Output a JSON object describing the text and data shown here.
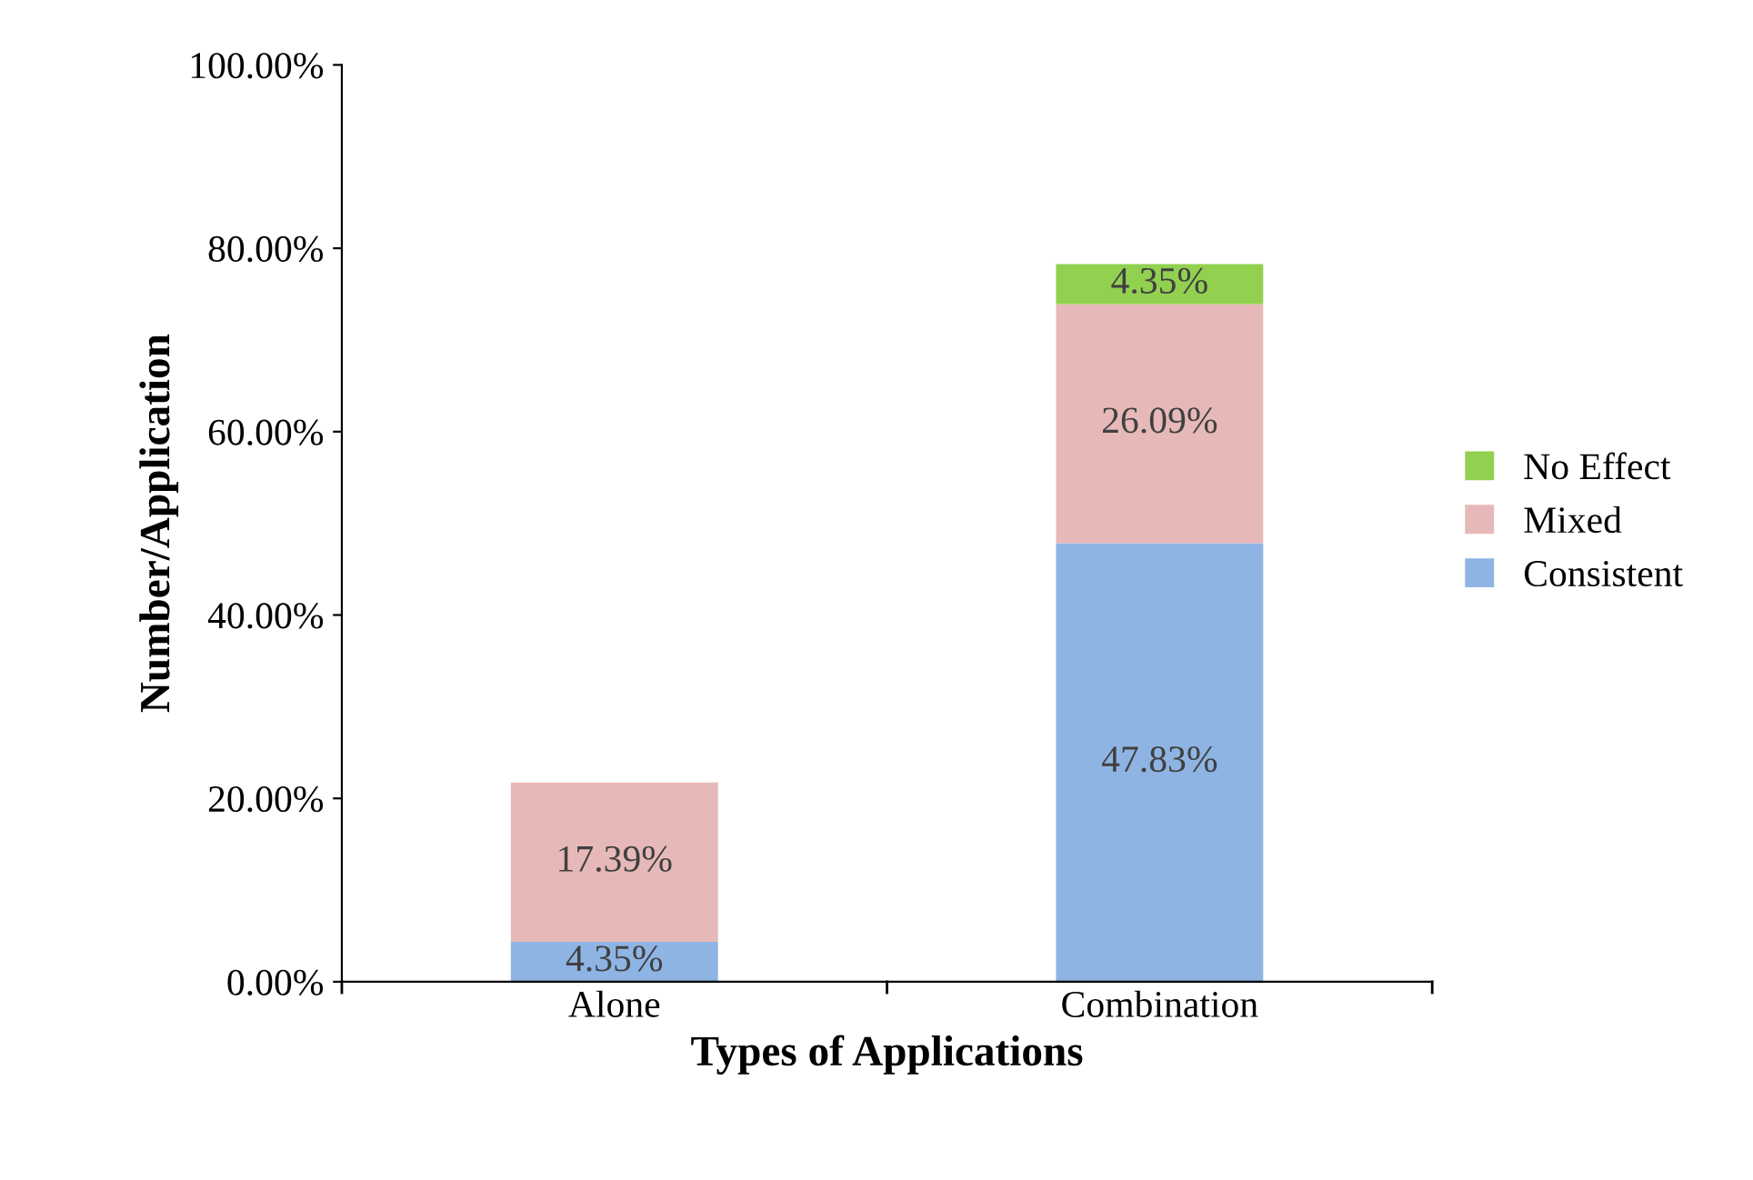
{
  "chart_data": {
    "type": "bar",
    "stacked": true,
    "xlabel": "Types of Applications",
    "ylabel": "Number/Application",
    "categories": [
      "Alone",
      "Combination"
    ],
    "series": [
      {
        "name": "Consistent",
        "color": "#8eb4e3",
        "values": [
          4.35,
          47.83
        ],
        "value_labels": [
          "4.35%",
          "47.83%"
        ]
      },
      {
        "name": "Mixed",
        "color": "#e6b9b8",
        "values": [
          17.39,
          26.09
        ],
        "value_labels": [
          "17.39%",
          "26.09%"
        ]
      },
      {
        "name": "No Effect",
        "color": "#92d050",
        "values": [
          null,
          4.35
        ],
        "value_labels": [
          null,
          "4.35%"
        ]
      }
    ],
    "ylim": [
      0,
      100
    ],
    "yticks": [
      {
        "value": 0,
        "label": "0.00%"
      },
      {
        "value": 20,
        "label": "20.00%"
      },
      {
        "value": 40,
        "label": "40.00%"
      },
      {
        "value": 60,
        "label": "60.00%"
      },
      {
        "value": 80,
        "label": "80.00%"
      },
      {
        "value": 100,
        "label": "100.00%"
      }
    ],
    "grid": false,
    "legend": "right"
  }
}
